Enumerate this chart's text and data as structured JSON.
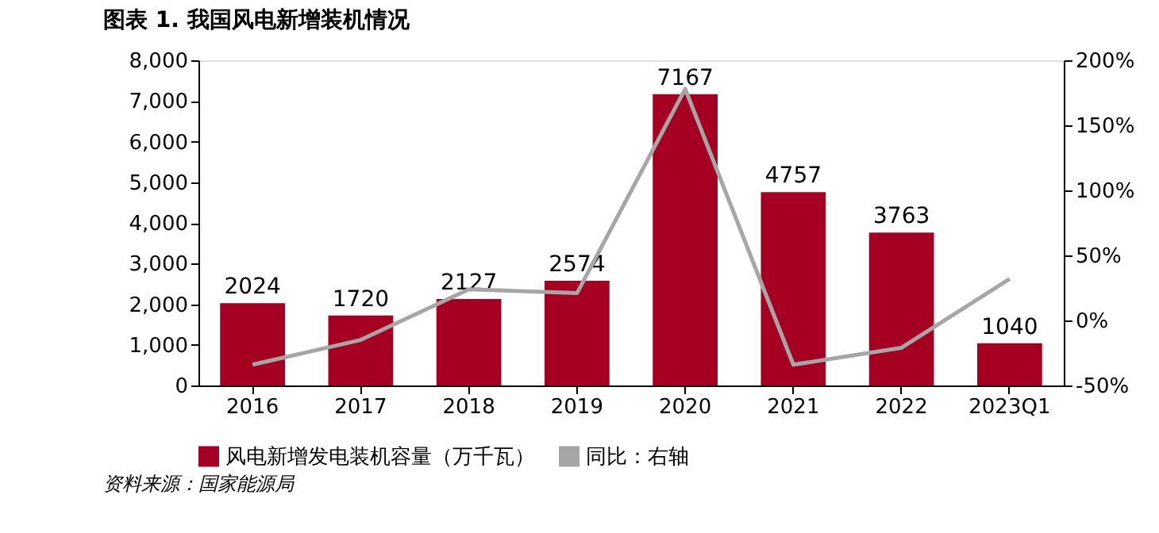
{
  "chart_data": {
    "type": "bar",
    "title": "图表 1. 我国风电新增装机情况",
    "categories": [
      "2016",
      "2017",
      "2018",
      "2019",
      "2020",
      "2021",
      "2022",
      "2023Q1"
    ],
    "series": [
      {
        "name": "风电新增发电装机容量（万千瓦）",
        "color": "#a50021",
        "values": [
          2024,
          1720,
          2127,
          2574,
          7167,
          4757,
          3763,
          1040
        ],
        "value_labels": [
          "2024",
          "1720",
          "2127",
          "2574",
          "7167",
          "4757",
          "3763",
          "1040"
        ]
      },
      {
        "name": "同比：右轴",
        "type": "line",
        "axis": "y2",
        "color": "#a6a6a6",
        "values": [
          -34,
          -15,
          24,
          21,
          178,
          -34,
          -21,
          32
        ]
      }
    ],
    "ylim": [
      0,
      8000
    ],
    "yticks": [
      {
        "value": 0,
        "label": "0"
      },
      {
        "value": 1000,
        "label": "1,000"
      },
      {
        "value": 2000,
        "label": "2,000"
      },
      {
        "value": 3000,
        "label": "3,000"
      },
      {
        "value": 4000,
        "label": "4,000"
      },
      {
        "value": 5000,
        "label": "5,000"
      },
      {
        "value": 6000,
        "label": "6,000"
      },
      {
        "value": 7000,
        "label": "7,000"
      },
      {
        "value": 8000,
        "label": "8,000"
      }
    ],
    "y2lim": [
      -50,
      200
    ],
    "y2ticks": [
      {
        "value": -50,
        "label": "-50%"
      },
      {
        "value": 0,
        "label": "0%"
      },
      {
        "value": 50,
        "label": "50%"
      },
      {
        "value": 100,
        "label": "100%"
      },
      {
        "value": 150,
        "label": "150%"
      },
      {
        "value": 200,
        "label": "200%"
      }
    ],
    "grid": false,
    "legend": "bottom",
    "annotations": [
      "资料来源：国家能源局"
    ]
  }
}
